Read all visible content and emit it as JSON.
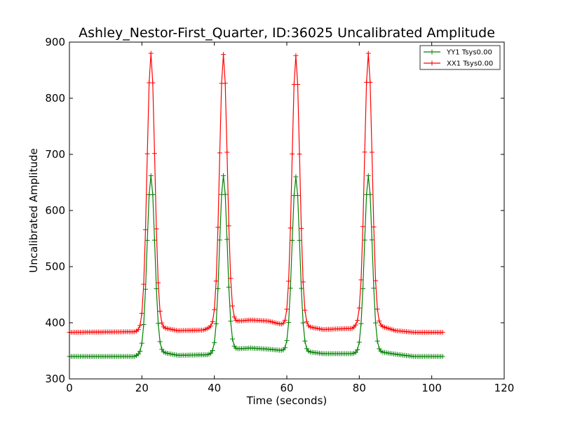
{
  "chart_data": {
    "type": "line",
    "title": "Ashley_Nestor-First_Quarter, ID:36025 Uncalibrated Amplitude",
    "xlabel": "Time (seconds)",
    "ylabel": "Uncalibrated Amplitude",
    "xlim": [
      0,
      120
    ],
    "ylim": [
      300,
      900
    ],
    "xticks": [
      0,
      20,
      40,
      60,
      80,
      100,
      120
    ],
    "yticks": [
      300,
      400,
      500,
      600,
      700,
      800,
      900
    ],
    "grid": false,
    "legend_position": "top-right",
    "x_start": 0,
    "x_end": 103,
    "x_step": 0.5,
    "series": [
      {
        "name": "YY1 Tsys0.00",
        "color": "#008000",
        "marker": "+",
        "peaks": [
          {
            "center": 22.5,
            "height": 662
          },
          {
            "center": 42.5,
            "height": 662
          },
          {
            "center": 62.5,
            "height": 660
          },
          {
            "center": 82.5,
            "height": 662
          }
        ],
        "baseline_knots": [
          [
            0,
            340
          ],
          [
            18,
            340
          ],
          [
            19,
            343
          ],
          [
            20,
            345
          ],
          [
            25,
            348
          ],
          [
            30,
            342
          ],
          [
            38,
            343
          ],
          [
            40,
            346
          ],
          [
            45,
            353
          ],
          [
            50,
            355
          ],
          [
            55,
            353
          ],
          [
            58,
            351
          ],
          [
            60,
            350
          ],
          [
            65,
            349
          ],
          [
            70,
            345
          ],
          [
            78,
            345
          ],
          [
            80,
            347
          ],
          [
            85,
            349
          ],
          [
            90,
            344
          ],
          [
            95,
            340
          ],
          [
            103,
            340
          ]
        ]
      },
      {
        "name": "XX1 Tsys0.00",
        "color": "#ff0000",
        "marker": "+",
        "peaks": [
          {
            "center": 22.5,
            "height": 880
          },
          {
            "center": 42.5,
            "height": 878
          },
          {
            "center": 62.5,
            "height": 876
          },
          {
            "center": 82.5,
            "height": 880
          }
        ],
        "baseline_knots": [
          [
            0,
            383
          ],
          [
            18,
            384
          ],
          [
            19,
            386
          ],
          [
            20,
            388
          ],
          [
            25,
            392
          ],
          [
            30,
            386
          ],
          [
            37,
            387
          ],
          [
            40,
            395
          ],
          [
            45,
            402
          ],
          [
            50,
            405
          ],
          [
            55,
            403
          ],
          [
            58,
            398
          ],
          [
            60,
            396
          ],
          [
            65,
            394
          ],
          [
            70,
            388
          ],
          [
            78,
            390
          ],
          [
            80,
            398
          ],
          [
            85,
            396
          ],
          [
            90,
            386
          ],
          [
            95,
            383
          ],
          [
            103,
            383
          ]
        ]
      }
    ]
  }
}
